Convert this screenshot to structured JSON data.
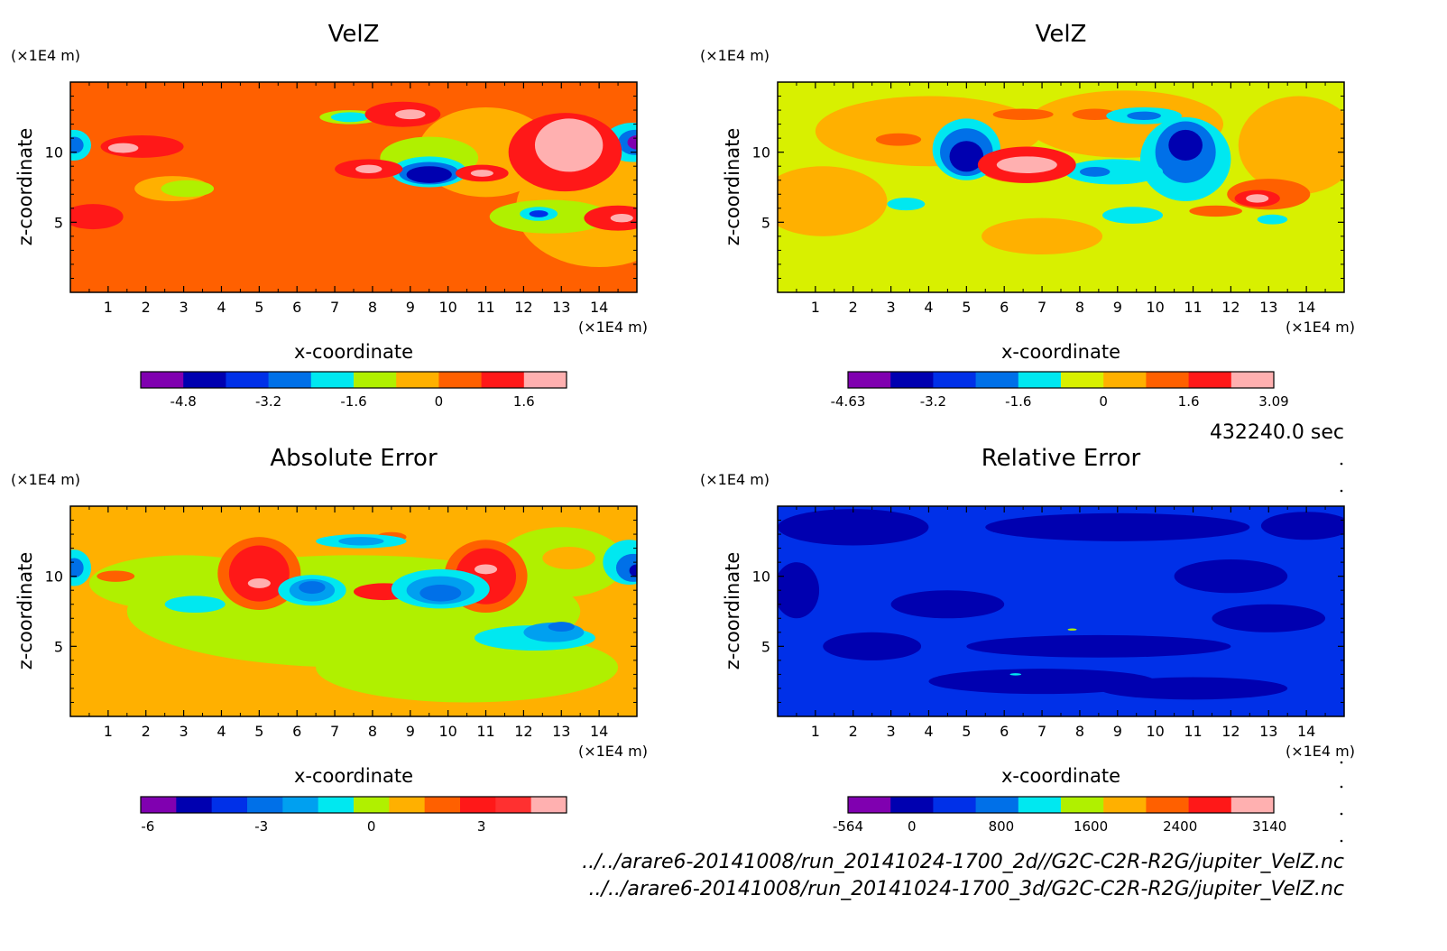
{
  "time_label": "432240.0 sec",
  "file_paths": [
    "../../arare6-20141008/run_20141024-1700_2d//G2C-C2R-R2G/jupiter_VelZ.nc",
    "../../arare6-20141008/run_20141024-1700_3d/G2C-C2R-R2G/jupiter_VelZ.nc"
  ],
  "colors": {
    "purple": "#8000b0",
    "navy": "#0000b0",
    "blue": "#0030e8",
    "mid_blue": "#0070e8",
    "sky": "#00a0f0",
    "cyan": "#00e8f0",
    "lime": "#b0f000",
    "yellow_green": "#d8f000",
    "orange": "#ffb000",
    "dark_orange": "#ff6000",
    "red": "#ff1818",
    "pink": "#ffb0b0"
  },
  "chart_data": [
    {
      "type": "heatmap",
      "title": "VelZ",
      "xlabel": "x-coordinate",
      "ylabel": "z-coordinate",
      "x_unit": "(×1E4 m)",
      "y_unit": "(×1E4 m)",
      "xlim": [
        0,
        15
      ],
      "ylim": [
        0,
        15
      ],
      "x_ticks": [
        1,
        2,
        3,
        4,
        5,
        6,
        7,
        8,
        9,
        10,
        11,
        12,
        13,
        14
      ],
      "y_ticks": [
        5,
        10
      ],
      "colorbar": {
        "colors": [
          "#8000b0",
          "#0000b0",
          "#0030e8",
          "#0070e8",
          "#00e8f0",
          "#b0f000",
          "#ffb000",
          "#ff6000",
          "#ff1818",
          "#ffb0b0"
        ],
        "labels": [
          "-4.8",
          "-3.2",
          "-1.6",
          "0",
          "1.6"
        ],
        "label_positions": [
          1,
          3,
          5,
          7,
          9
        ]
      },
      "background": "#ff6000",
      "blobs": [
        {
          "x": 14.0,
          "y": 6.0,
          "rx": 2.2,
          "ry": 4.2,
          "color": "#ffb000"
        },
        {
          "x": 11.0,
          "y": 10.0,
          "rx": 1.8,
          "ry": 3.2,
          "color": "#ffb000"
        },
        {
          "x": 2.7,
          "y": 7.4,
          "rx": 1.0,
          "ry": 0.9,
          "color": "#ffb000"
        },
        {
          "x": 12.7,
          "y": 5.4,
          "rx": 1.6,
          "ry": 1.2,
          "color": "#b0f000"
        },
        {
          "x": 3.1,
          "y": 7.4,
          "rx": 0.7,
          "ry": 0.6,
          "color": "#b0f000"
        },
        {
          "x": 9.5,
          "y": 9.6,
          "rx": 1.3,
          "ry": 1.5,
          "color": "#b0f000"
        },
        {
          "x": 9.5,
          "y": 8.6,
          "rx": 1.0,
          "ry": 1.1,
          "color": "#00e8f0"
        },
        {
          "x": 9.5,
          "y": 8.5,
          "rx": 0.8,
          "ry": 0.8,
          "color": "#0070e8"
        },
        {
          "x": 9.5,
          "y": 8.4,
          "rx": 0.6,
          "ry": 0.6,
          "color": "#0000b0"
        },
        {
          "x": 7.4,
          "y": 12.5,
          "rx": 0.8,
          "ry": 0.5,
          "color": "#b0f000"
        },
        {
          "x": 7.4,
          "y": 12.5,
          "rx": 0.5,
          "ry": 0.35,
          "color": "#00e8f0"
        },
        {
          "x": 12.4,
          "y": 5.6,
          "rx": 0.5,
          "ry": 0.5,
          "color": "#00e8f0"
        },
        {
          "x": 12.4,
          "y": 5.6,
          "rx": 0.25,
          "ry": 0.25,
          "color": "#0030e8"
        },
        {
          "x": 14.9,
          "y": 10.7,
          "rx": 0.8,
          "ry": 1.4,
          "color": "#00e8f0"
        },
        {
          "x": 14.95,
          "y": 10.7,
          "rx": 0.45,
          "ry": 0.9,
          "color": "#0070e8"
        },
        {
          "x": 15.0,
          "y": 10.7,
          "rx": 0.25,
          "ry": 0.5,
          "color": "#8000b0"
        },
        {
          "x": 0.1,
          "y": 10.5,
          "rx": 0.45,
          "ry": 1.1,
          "color": "#00e8f0"
        },
        {
          "x": 0.1,
          "y": 10.5,
          "rx": 0.25,
          "ry": 0.6,
          "color": "#0070e8"
        },
        {
          "x": 8.8,
          "y": 12.7,
          "rx": 1.0,
          "ry": 0.9,
          "color": "#ff1818"
        },
        {
          "x": 9.0,
          "y": 12.7,
          "rx": 0.4,
          "ry": 0.35,
          "color": "#ffb0b0"
        },
        {
          "x": 1.9,
          "y": 10.4,
          "rx": 1.1,
          "ry": 0.8,
          "color": "#ff1818"
        },
        {
          "x": 1.4,
          "y": 10.3,
          "rx": 0.4,
          "ry": 0.35,
          "color": "#ffb0b0"
        },
        {
          "x": 7.9,
          "y": 8.8,
          "rx": 0.9,
          "ry": 0.7,
          "color": "#ff1818"
        },
        {
          "x": 7.9,
          "y": 8.8,
          "rx": 0.35,
          "ry": 0.3,
          "color": "#ffb0b0"
        },
        {
          "x": 10.9,
          "y": 8.5,
          "rx": 0.7,
          "ry": 0.6,
          "color": "#ff1818"
        },
        {
          "x": 10.9,
          "y": 8.5,
          "rx": 0.3,
          "ry": 0.25,
          "color": "#ffb0b0"
        },
        {
          "x": 13.1,
          "y": 10.0,
          "rx": 1.5,
          "ry": 2.8,
          "color": "#ff1818"
        },
        {
          "x": 13.2,
          "y": 10.5,
          "rx": 0.9,
          "ry": 1.9,
          "color": "#ffb0b0"
        },
        {
          "x": 14.5,
          "y": 5.3,
          "rx": 0.9,
          "ry": 0.9,
          "color": "#ff1818"
        },
        {
          "x": 14.6,
          "y": 5.3,
          "rx": 0.3,
          "ry": 0.3,
          "color": "#ffb0b0"
        },
        {
          "x": 0.6,
          "y": 5.4,
          "rx": 0.8,
          "ry": 0.9,
          "color": "#ff1818"
        }
      ]
    },
    {
      "type": "heatmap",
      "title": "VelZ",
      "xlabel": "x-coordinate",
      "ylabel": "z-coordinate",
      "x_unit": "(×1E4 m)",
      "y_unit": "(×1E4 m)",
      "xlim": [
        0,
        15
      ],
      "ylim": [
        0,
        15
      ],
      "x_ticks": [
        1,
        2,
        3,
        4,
        5,
        6,
        7,
        8,
        9,
        10,
        11,
        12,
        13,
        14
      ],
      "y_ticks": [
        5,
        10
      ],
      "colorbar": {
        "colors": [
          "#8000b0",
          "#0000b0",
          "#0030e8",
          "#0070e8",
          "#00e8f0",
          "#d8f000",
          "#ffb000",
          "#ff6000",
          "#ff1818",
          "#ffb0b0"
        ],
        "labels": [
          "-4.63",
          "-3.2",
          "-1.6",
          "0",
          "1.6",
          "3.09"
        ],
        "label_positions": [
          0,
          2,
          4,
          6,
          8,
          10
        ]
      },
      "background": "#d8f000",
      "blobs": [
        {
          "x": 4.0,
          "y": 11.5,
          "rx": 3.0,
          "ry": 2.5,
          "color": "#ffb000"
        },
        {
          "x": 9.2,
          "y": 12.0,
          "rx": 2.6,
          "ry": 2.4,
          "color": "#ffb000"
        },
        {
          "x": 1.2,
          "y": 6.5,
          "rx": 1.7,
          "ry": 2.5,
          "color": "#ffb000"
        },
        {
          "x": 13.8,
          "y": 10.5,
          "rx": 1.6,
          "ry": 3.5,
          "color": "#ffb000"
        },
        {
          "x": 7.0,
          "y": 4.0,
          "rx": 1.6,
          "ry": 1.3,
          "color": "#ffb000"
        },
        {
          "x": 13.0,
          "y": 7.0,
          "rx": 1.1,
          "ry": 1.1,
          "color": "#ff6000"
        },
        {
          "x": 6.5,
          "y": 9.0,
          "rx": 1.2,
          "ry": 1.2,
          "color": "#ff6000"
        },
        {
          "x": 5.0,
          "y": 11.0,
          "rx": 1.3,
          "ry": 2.5,
          "color": "#ffb000"
        },
        {
          "x": 3.2,
          "y": 10.9,
          "rx": 0.6,
          "ry": 0.45,
          "color": "#ff6000"
        },
        {
          "x": 8.4,
          "y": 12.7,
          "rx": 0.6,
          "ry": 0.4,
          "color": "#ff6000"
        },
        {
          "x": 5.0,
          "y": 10.2,
          "rx": 0.9,
          "ry": 2.2,
          "color": "#00e8f0"
        },
        {
          "x": 5.0,
          "y": 10.0,
          "rx": 0.7,
          "ry": 1.7,
          "color": "#0070e8"
        },
        {
          "x": 5.0,
          "y": 9.7,
          "rx": 0.45,
          "ry": 1.1,
          "color": "#0000b0"
        },
        {
          "x": 10.8,
          "y": 9.5,
          "rx": 1.2,
          "ry": 3.0,
          "color": "#00e8f0"
        },
        {
          "x": 10.8,
          "y": 10.0,
          "rx": 0.8,
          "ry": 2.2,
          "color": "#0070e8"
        },
        {
          "x": 10.8,
          "y": 10.5,
          "rx": 0.45,
          "ry": 1.1,
          "color": "#0000b0"
        },
        {
          "x": 8.9,
          "y": 8.6,
          "rx": 1.3,
          "ry": 0.9,
          "color": "#00e8f0"
        },
        {
          "x": 8.4,
          "y": 8.6,
          "rx": 0.4,
          "ry": 0.35,
          "color": "#0070e8"
        },
        {
          "x": 9.7,
          "y": 12.6,
          "rx": 1.0,
          "ry": 0.6,
          "color": "#00e8f0"
        },
        {
          "x": 9.7,
          "y": 12.6,
          "rx": 0.45,
          "ry": 0.3,
          "color": "#0070e8"
        },
        {
          "x": 9.4,
          "y": 5.5,
          "rx": 0.8,
          "ry": 0.6,
          "color": "#00e8f0"
        },
        {
          "x": 3.4,
          "y": 6.3,
          "rx": 0.5,
          "ry": 0.45,
          "color": "#00e8f0"
        },
        {
          "x": 13.1,
          "y": 5.2,
          "rx": 0.4,
          "ry": 0.35,
          "color": "#00e8f0"
        },
        {
          "x": 6.6,
          "y": 9.1,
          "rx": 1.3,
          "ry": 1.3,
          "color": "#ff1818"
        },
        {
          "x": 6.6,
          "y": 9.1,
          "rx": 0.8,
          "ry": 0.6,
          "color": "#ffb0b0"
        },
        {
          "x": 12.7,
          "y": 6.7,
          "rx": 0.6,
          "ry": 0.6,
          "color": "#ff1818"
        },
        {
          "x": 12.7,
          "y": 6.7,
          "rx": 0.3,
          "ry": 0.3,
          "color": "#ffb0b0"
        },
        {
          "x": 6.5,
          "y": 12.7,
          "rx": 0.8,
          "ry": 0.4,
          "color": "#ff6000"
        },
        {
          "x": 11.6,
          "y": 5.8,
          "rx": 0.7,
          "ry": 0.4,
          "color": "#ff6000"
        }
      ]
    },
    {
      "type": "heatmap",
      "title": "Absolute Error",
      "xlabel": "x-coordinate",
      "ylabel": "z-coordinate",
      "x_unit": "(×1E4 m)",
      "y_unit": "(×1E4 m)",
      "xlim": [
        0,
        15
      ],
      "ylim": [
        0,
        15
      ],
      "x_ticks": [
        1,
        2,
        3,
        4,
        5,
        6,
        7,
        8,
        9,
        10,
        11,
        12,
        13,
        14
      ],
      "y_ticks": [
        5,
        10
      ],
      "colorbar": {
        "colors": [
          "#8000b0",
          "#0000b0",
          "#0030e8",
          "#0070e8",
          "#00a0f0",
          "#00e8f0",
          "#b0f000",
          "#ffb000",
          "#ff6000",
          "#ff1818",
          "#ff3030",
          "#ffb0b0"
        ],
        "labels": [
          "-6",
          "-3",
          "0",
          "3"
        ],
        "label_positions": [
          0.2,
          3.4,
          6.5,
          9.6
        ]
      },
      "background": "#ffb000",
      "blobs": [
        {
          "x": 7.5,
          "y": 7.5,
          "rx": 6.0,
          "ry": 4.0,
          "color": "#b0f000"
        },
        {
          "x": 10.5,
          "y": 3.5,
          "rx": 4.0,
          "ry": 2.5,
          "color": "#b0f000"
        },
        {
          "x": 3.0,
          "y": 9.5,
          "rx": 2.5,
          "ry": 2.0,
          "color": "#b0f000"
        },
        {
          "x": 13.0,
          "y": 11.0,
          "rx": 1.7,
          "ry": 2.5,
          "color": "#b0f000"
        },
        {
          "x": 13.2,
          "y": 11.3,
          "rx": 0.7,
          "ry": 0.8,
          "color": "#ffb000"
        },
        {
          "x": 5.0,
          "y": 10.2,
          "rx": 1.1,
          "ry": 2.6,
          "color": "#ff6000"
        },
        {
          "x": 5.0,
          "y": 10.2,
          "rx": 0.8,
          "ry": 2.0,
          "color": "#ff1818"
        },
        {
          "x": 5.0,
          "y": 9.5,
          "rx": 0.3,
          "ry": 0.35,
          "color": "#ffb0b0"
        },
        {
          "x": 11.0,
          "y": 10.0,
          "rx": 1.1,
          "ry": 2.6,
          "color": "#ff6000"
        },
        {
          "x": 11.0,
          "y": 10.0,
          "rx": 0.8,
          "ry": 2.0,
          "color": "#ff1818"
        },
        {
          "x": 11.0,
          "y": 10.5,
          "rx": 0.3,
          "ry": 0.35,
          "color": "#ffb0b0"
        },
        {
          "x": 8.3,
          "y": 8.9,
          "rx": 0.8,
          "ry": 0.6,
          "color": "#ff1818"
        },
        {
          "x": 8.5,
          "y": 12.8,
          "rx": 0.4,
          "ry": 0.35,
          "color": "#ff6000"
        },
        {
          "x": 1.2,
          "y": 10.0,
          "rx": 0.5,
          "ry": 0.4,
          "color": "#ff6000"
        },
        {
          "x": 6.4,
          "y": 9.0,
          "rx": 0.9,
          "ry": 1.1,
          "color": "#00e8f0"
        },
        {
          "x": 6.4,
          "y": 9.0,
          "rx": 0.6,
          "ry": 0.8,
          "color": "#00a0f0"
        },
        {
          "x": 6.4,
          "y": 9.2,
          "rx": 0.35,
          "ry": 0.45,
          "color": "#0070e8"
        },
        {
          "x": 9.8,
          "y": 9.1,
          "rx": 1.3,
          "ry": 1.4,
          "color": "#00e8f0"
        },
        {
          "x": 9.8,
          "y": 9.0,
          "rx": 0.9,
          "ry": 1.0,
          "color": "#00a0f0"
        },
        {
          "x": 9.8,
          "y": 8.8,
          "rx": 0.55,
          "ry": 0.6,
          "color": "#0070e8"
        },
        {
          "x": 7.7,
          "y": 12.5,
          "rx": 1.2,
          "ry": 0.5,
          "color": "#00e8f0"
        },
        {
          "x": 7.7,
          "y": 12.5,
          "rx": 0.6,
          "ry": 0.3,
          "color": "#00a0f0"
        },
        {
          "x": 3.3,
          "y": 8.0,
          "rx": 0.8,
          "ry": 0.6,
          "color": "#00e8f0"
        },
        {
          "x": 12.3,
          "y": 5.6,
          "rx": 1.6,
          "ry": 0.9,
          "color": "#00e8f0"
        },
        {
          "x": 12.8,
          "y": 6.0,
          "rx": 0.8,
          "ry": 0.7,
          "color": "#00a0f0"
        },
        {
          "x": 13.0,
          "y": 6.4,
          "rx": 0.35,
          "ry": 0.35,
          "color": "#0070e8"
        },
        {
          "x": 14.8,
          "y": 11.0,
          "rx": 0.7,
          "ry": 1.6,
          "color": "#00e8f0"
        },
        {
          "x": 14.9,
          "y": 10.6,
          "rx": 0.45,
          "ry": 1.0,
          "color": "#0070e8"
        },
        {
          "x": 15.0,
          "y": 10.4,
          "rx": 0.2,
          "ry": 0.45,
          "color": "#0000b0"
        },
        {
          "x": 0.1,
          "y": 10.6,
          "rx": 0.45,
          "ry": 1.3,
          "color": "#00e8f0"
        },
        {
          "x": 0.1,
          "y": 10.6,
          "rx": 0.25,
          "ry": 0.7,
          "color": "#0070e8"
        }
      ]
    },
    {
      "type": "heatmap",
      "title": "Relative Error",
      "xlabel": "x-coordinate",
      "ylabel": "z-coordinate",
      "x_unit": "(×1E4 m)",
      "y_unit": "(×1E4 m)",
      "xlim": [
        0,
        15
      ],
      "ylim": [
        0,
        15
      ],
      "x_ticks": [
        1,
        2,
        3,
        4,
        5,
        6,
        7,
        8,
        9,
        10,
        11,
        12,
        13,
        14
      ],
      "y_ticks": [
        5,
        10
      ],
      "colorbar": {
        "colors": [
          "#8000b0",
          "#0000b0",
          "#0030e8",
          "#0070e8",
          "#00e8f0",
          "#b0f000",
          "#ffb000",
          "#ff6000",
          "#ff1818",
          "#ffb0b0"
        ],
        "labels": [
          "-564",
          "0",
          "800",
          "1600",
          "2400",
          "3140"
        ],
        "label_positions": [
          0,
          1.5,
          3.6,
          5.7,
          7.8,
          9.9
        ]
      },
      "background": "#0030e8",
      "blobs": [
        {
          "x": 2.0,
          "y": 13.5,
          "rx": 2.0,
          "ry": 1.3,
          "color": "#0000b0"
        },
        {
          "x": 9.0,
          "y": 13.5,
          "rx": 3.5,
          "ry": 1.0,
          "color": "#0000b0"
        },
        {
          "x": 14.0,
          "y": 13.6,
          "rx": 1.2,
          "ry": 1.0,
          "color": "#0000b0"
        },
        {
          "x": 2.5,
          "y": 5.0,
          "rx": 1.3,
          "ry": 1.0,
          "color": "#0000b0"
        },
        {
          "x": 8.5,
          "y": 5.0,
          "rx": 3.5,
          "ry": 0.8,
          "color": "#0000b0"
        },
        {
          "x": 7.0,
          "y": 2.5,
          "rx": 3.0,
          "ry": 0.9,
          "color": "#0000b0"
        },
        {
          "x": 11.0,
          "y": 2.0,
          "rx": 2.5,
          "ry": 0.8,
          "color": "#0000b0"
        },
        {
          "x": 13.0,
          "y": 7.0,
          "rx": 1.5,
          "ry": 1.0,
          "color": "#0000b0"
        },
        {
          "x": 12.0,
          "y": 10.0,
          "rx": 1.5,
          "ry": 1.2,
          "color": "#0000b0"
        },
        {
          "x": 4.5,
          "y": 8.0,
          "rx": 1.5,
          "ry": 1.0,
          "color": "#0000b0"
        },
        {
          "x": 0.5,
          "y": 9.0,
          "rx": 0.6,
          "ry": 2.0,
          "color": "#0000b0"
        },
        {
          "x": 7.8,
          "y": 6.2,
          "rx": 0.12,
          "ry": 0.08,
          "color": "#b0f000"
        },
        {
          "x": 6.3,
          "y": 3.0,
          "rx": 0.15,
          "ry": 0.08,
          "color": "#00e8f0"
        }
      ]
    }
  ]
}
